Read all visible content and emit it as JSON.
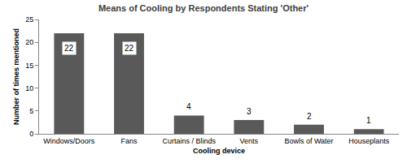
{
  "chart_data": {
    "type": "bar",
    "title": "Means of Cooling by Respondents Stating 'Other'",
    "x_label": "Cooling device",
    "y_label": "Number of times mentioned",
    "categories": [
      "Windows/Doors",
      "Fans",
      "Curtains / Blinds",
      "Vents",
      "Bowls of Water",
      "Houseplants"
    ],
    "values": [
      22,
      22,
      4,
      3,
      2,
      1
    ],
    "color": "#595959",
    "ylim": [
      0,
      25
    ],
    "yticks": [
      0,
      5,
      10,
      15,
      20,
      25
    ],
    "grid": false,
    "data_labels": true
  }
}
